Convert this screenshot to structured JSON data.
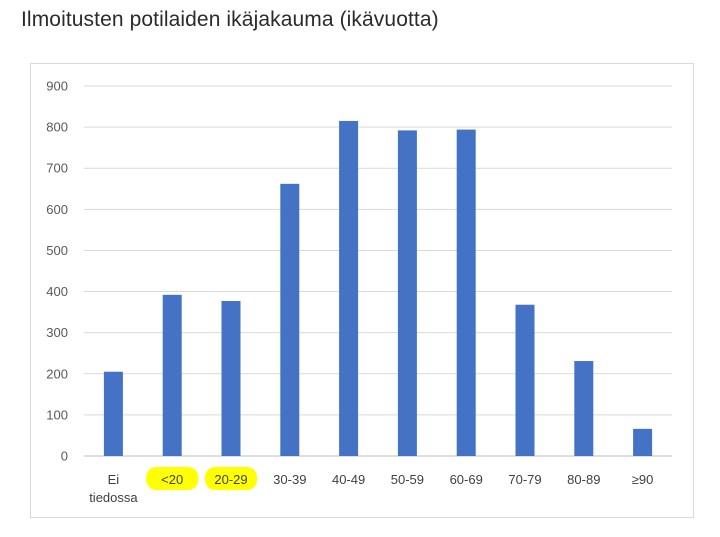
{
  "page": {
    "title": "Ilmoitusten potilaiden ikäjakauma (ikävuotta)"
  },
  "chart_data": {
    "type": "bar",
    "title": "",
    "xlabel": "",
    "ylabel": "",
    "categories": [
      [
        "Ei",
        "tiedossa"
      ],
      [
        "<20"
      ],
      [
        "20-29"
      ],
      [
        "30-39"
      ],
      [
        "40-49"
      ],
      [
        "50-59"
      ],
      [
        "60-69"
      ],
      [
        "70-79"
      ],
      [
        "80-89"
      ],
      [
        "≥90"
      ]
    ],
    "values": [
      205,
      392,
      377,
      662,
      815,
      792,
      794,
      368,
      231,
      66
    ],
    "ylim": [
      0,
      900
    ],
    "yticks": [
      0,
      100,
      200,
      300,
      400,
      500,
      600,
      700,
      800,
      900
    ],
    "grid": true,
    "legend": "none",
    "highlighted_categories": [
      1,
      2
    ],
    "colors": {
      "bar": "#4472C4",
      "grid": "#d9d9d9",
      "axis": "#bfbfbf",
      "highlight": "#ffff00"
    }
  }
}
